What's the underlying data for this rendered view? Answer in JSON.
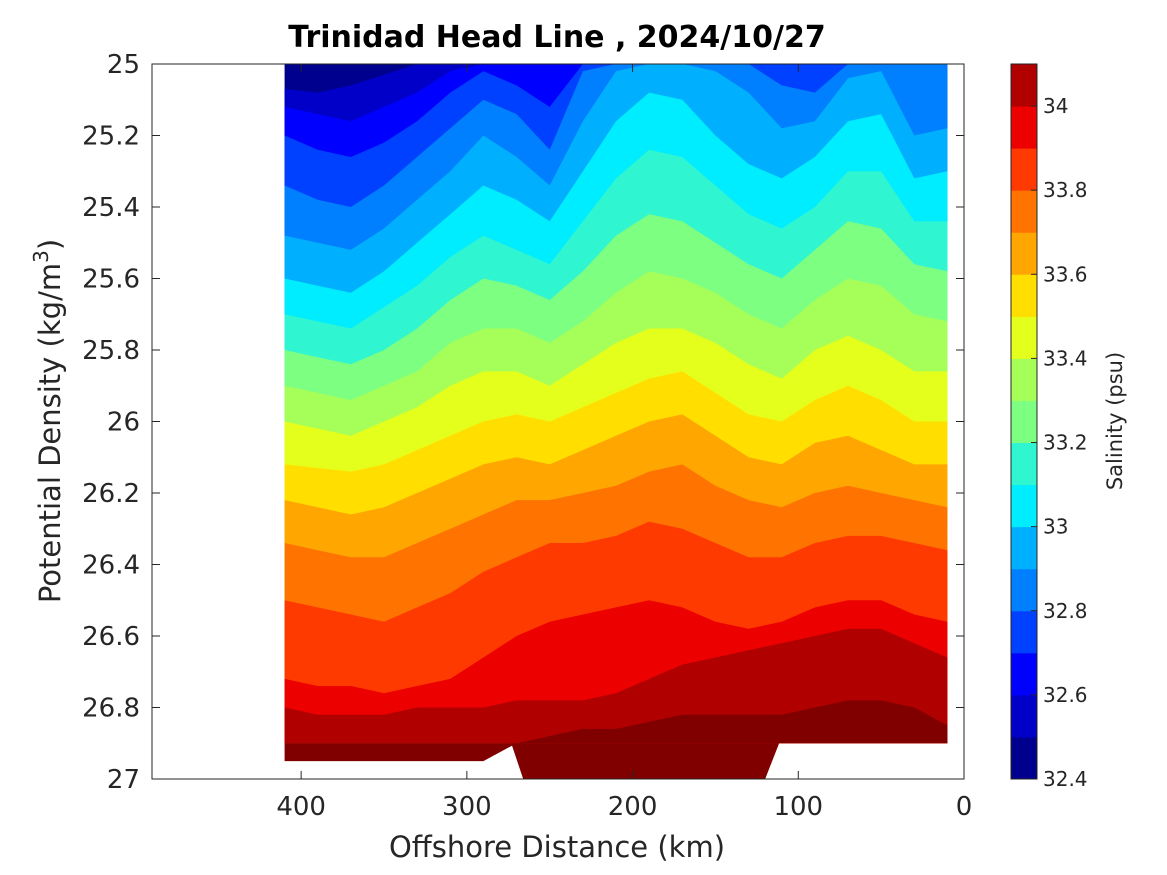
{
  "chart_data": {
    "type": "contour",
    "title": "Trinidad Head Line , 2024/10/27",
    "xlabel": "Offshore Distance (km)",
    "ylabel_main": "Potential Density (kg/m",
    "ylabel_sup": "3",
    "ylabel_close": ")",
    "colorbar_label": "Salinity (psu)",
    "xlim": [
      490,
      0
    ],
    "ylim": [
      25,
      27
    ],
    "y_reversed": true,
    "x_ticks": [
      {
        "value": 400,
        "label": "400"
      },
      {
        "value": 300,
        "label": "300"
      },
      {
        "value": 200,
        "label": "200"
      },
      {
        "value": 100,
        "label": "100"
      },
      {
        "value": 0,
        "label": "0"
      }
    ],
    "y_ticks": [
      {
        "value": 25.0,
        "label": "25"
      },
      {
        "value": 25.2,
        "label": "25.2"
      },
      {
        "value": 25.4,
        "label": "25.4"
      },
      {
        "value": 25.6,
        "label": "25.6"
      },
      {
        "value": 25.8,
        "label": "25.8"
      },
      {
        "value": 26.0,
        "label": "26"
      },
      {
        "value": 26.2,
        "label": "26.2"
      },
      {
        "value": 26.4,
        "label": "26.4"
      },
      {
        "value": 26.6,
        "label": "26.6"
      },
      {
        "value": 26.8,
        "label": "26.8"
      },
      {
        "value": 27.0,
        "label": "27"
      }
    ],
    "levels": [
      32.4,
      32.5,
      32.6,
      32.7,
      32.8,
      32.9,
      33.0,
      33.1,
      33.2,
      33.3,
      33.4,
      33.5,
      33.6,
      33.7,
      33.8,
      33.9,
      34.0,
      34.1
    ],
    "level_colors": [
      "#00008f",
      "#0000c8",
      "#0000ff",
      "#0040ff",
      "#0080ff",
      "#00b0ff",
      "#00ecff",
      "#2ff5d0",
      "#7dff82",
      "#a6ff59",
      "#e4ff1b",
      "#ffde00",
      "#ffa600",
      "#ff7400",
      "#ff3a00",
      "#ec0000",
      "#b00000",
      "#800000"
    ],
    "colorbar_ticks": [
      {
        "value": 32.4,
        "label": "32.4"
      },
      {
        "value": 32.6,
        "label": "32.6"
      },
      {
        "value": 32.8,
        "label": "32.8"
      },
      {
        "value": 33.0,
        "label": "33"
      },
      {
        "value": 33.2,
        "label": "33.2"
      },
      {
        "value": 33.4,
        "label": "33.4"
      },
      {
        "value": 33.6,
        "label": "33.6"
      },
      {
        "value": 33.8,
        "label": "33.8"
      },
      {
        "value": 34.0,
        "label": "34"
      }
    ],
    "isopycnal_x": [
      410,
      390,
      370,
      350,
      330,
      310,
      290,
      270,
      250,
      230,
      210,
      190,
      170,
      150,
      130,
      110,
      90,
      70,
      50,
      30,
      10
    ],
    "isohaline_depths": [
      {
        "level": 32.5,
        "y": [
          25.07,
          25.08,
          25.06,
          25.03,
          25.0,
          25.0,
          25.0,
          25.0,
          25.0,
          25.0,
          25.0,
          25.0,
          25.0,
          25.0,
          25.0,
          25.0,
          25.0,
          25.0,
          25.0,
          25.0,
          25.0
        ]
      },
      {
        "level": 32.6,
        "y": [
          25.12,
          25.14,
          25.16,
          25.12,
          25.08,
          25.02,
          25.0,
          25.0,
          25.0,
          25.0,
          25.0,
          25.0,
          25.0,
          25.0,
          25.0,
          25.0,
          25.0,
          25.0,
          25.0,
          25.0,
          25.0
        ]
      },
      {
        "level": 32.7,
        "y": [
          25.2,
          25.24,
          25.26,
          25.22,
          25.16,
          25.08,
          25.02,
          25.06,
          25.12,
          25.0,
          25.0,
          25.0,
          25.0,
          25.0,
          25.0,
          25.0,
          25.0,
          25.0,
          25.0,
          25.0,
          25.0
        ]
      },
      {
        "level": 32.8,
        "y": [
          25.34,
          25.38,
          25.4,
          25.34,
          25.26,
          25.18,
          25.1,
          25.14,
          25.24,
          25.02,
          25.0,
          25.0,
          25.0,
          25.0,
          25.0,
          25.06,
          25.08,
          25.0,
          25.0,
          25.0,
          25.0
        ]
      },
      {
        "level": 32.9,
        "y": [
          25.48,
          25.5,
          25.52,
          25.46,
          25.38,
          25.3,
          25.2,
          25.26,
          25.34,
          25.16,
          25.02,
          25.0,
          25.0,
          25.02,
          25.08,
          25.18,
          25.16,
          25.04,
          25.02,
          25.2,
          25.18
        ]
      },
      {
        "level": 33.0,
        "y": [
          25.6,
          25.62,
          25.64,
          25.58,
          25.5,
          25.42,
          25.34,
          25.38,
          25.44,
          25.3,
          25.16,
          25.08,
          25.1,
          25.2,
          25.28,
          25.32,
          25.26,
          25.16,
          25.14,
          25.32,
          25.3
        ]
      },
      {
        "level": 33.1,
        "y": [
          25.7,
          25.72,
          25.74,
          25.68,
          25.62,
          25.54,
          25.48,
          25.52,
          25.56,
          25.44,
          25.32,
          25.24,
          25.26,
          25.34,
          25.42,
          25.46,
          25.4,
          25.3,
          25.3,
          25.44,
          25.44
        ]
      },
      {
        "level": 33.2,
        "y": [
          25.8,
          25.82,
          25.84,
          25.8,
          25.74,
          25.66,
          25.6,
          25.62,
          25.66,
          25.58,
          25.48,
          25.42,
          25.44,
          25.5,
          25.56,
          25.6,
          25.52,
          25.44,
          25.46,
          25.56,
          25.58
        ]
      },
      {
        "level": 33.3,
        "y": [
          25.9,
          25.92,
          25.94,
          25.9,
          25.86,
          25.78,
          25.74,
          25.74,
          25.78,
          25.72,
          25.64,
          25.58,
          25.6,
          25.64,
          25.7,
          25.74,
          25.66,
          25.6,
          25.62,
          25.7,
          25.72
        ]
      },
      {
        "level": 33.4,
        "y": [
          26.0,
          26.02,
          26.04,
          26.0,
          25.96,
          25.9,
          25.86,
          25.86,
          25.9,
          25.84,
          25.78,
          25.74,
          25.74,
          25.78,
          25.84,
          25.88,
          25.8,
          25.76,
          25.8,
          25.86,
          25.86
        ]
      },
      {
        "level": 33.5,
        "y": [
          26.12,
          26.13,
          26.14,
          26.12,
          26.08,
          26.04,
          26.0,
          25.98,
          26.0,
          25.96,
          25.92,
          25.88,
          25.86,
          25.92,
          25.98,
          26.0,
          25.94,
          25.9,
          25.94,
          26.0,
          26.0
        ]
      },
      {
        "level": 33.6,
        "y": [
          26.22,
          26.24,
          26.26,
          26.24,
          26.2,
          26.16,
          26.12,
          26.1,
          26.12,
          26.08,
          26.04,
          26.0,
          25.98,
          26.04,
          26.1,
          26.12,
          26.06,
          26.04,
          26.08,
          26.12,
          26.12
        ]
      },
      {
        "level": 33.7,
        "y": [
          26.34,
          26.36,
          26.38,
          26.38,
          26.34,
          26.3,
          26.26,
          26.22,
          26.22,
          26.2,
          26.18,
          26.14,
          26.12,
          26.18,
          26.22,
          26.24,
          26.2,
          26.18,
          26.2,
          26.22,
          26.24
        ]
      },
      {
        "level": 33.8,
        "y": [
          26.5,
          26.52,
          26.54,
          26.56,
          26.52,
          26.48,
          26.42,
          26.38,
          26.34,
          26.34,
          26.32,
          26.28,
          26.3,
          26.34,
          26.38,
          26.38,
          26.34,
          26.32,
          26.32,
          26.34,
          26.36
        ]
      },
      {
        "level": 33.9,
        "y": [
          26.72,
          26.74,
          26.74,
          26.76,
          26.74,
          26.72,
          26.66,
          26.6,
          26.56,
          26.54,
          26.52,
          26.5,
          26.52,
          26.56,
          26.58,
          26.56,
          26.52,
          26.5,
          26.5,
          26.54,
          26.56
        ]
      },
      {
        "level": 34.0,
        "y": [
          26.8,
          26.82,
          26.82,
          26.82,
          26.8,
          26.8,
          26.8,
          26.78,
          26.78,
          26.78,
          26.76,
          26.72,
          26.68,
          26.66,
          26.64,
          26.62,
          26.6,
          26.58,
          26.58,
          26.62,
          26.66
        ]
      },
      {
        "level": 34.1,
        "y": [
          26.95,
          26.95,
          26.95,
          26.95,
          26.95,
          26.95,
          26.95,
          26.9,
          26.88,
          26.86,
          26.86,
          26.84,
          26.82,
          26.82,
          26.82,
          26.82,
          26.8,
          26.78,
          26.78,
          26.8,
          26.85
        ]
      }
    ],
    "data_extent": {
      "x_range": [
        410,
        10
      ],
      "bottom_y": 26.9,
      "deep_region_x": [
        266,
        120
      ],
      "deep_region_bottom": 27.0
    }
  }
}
